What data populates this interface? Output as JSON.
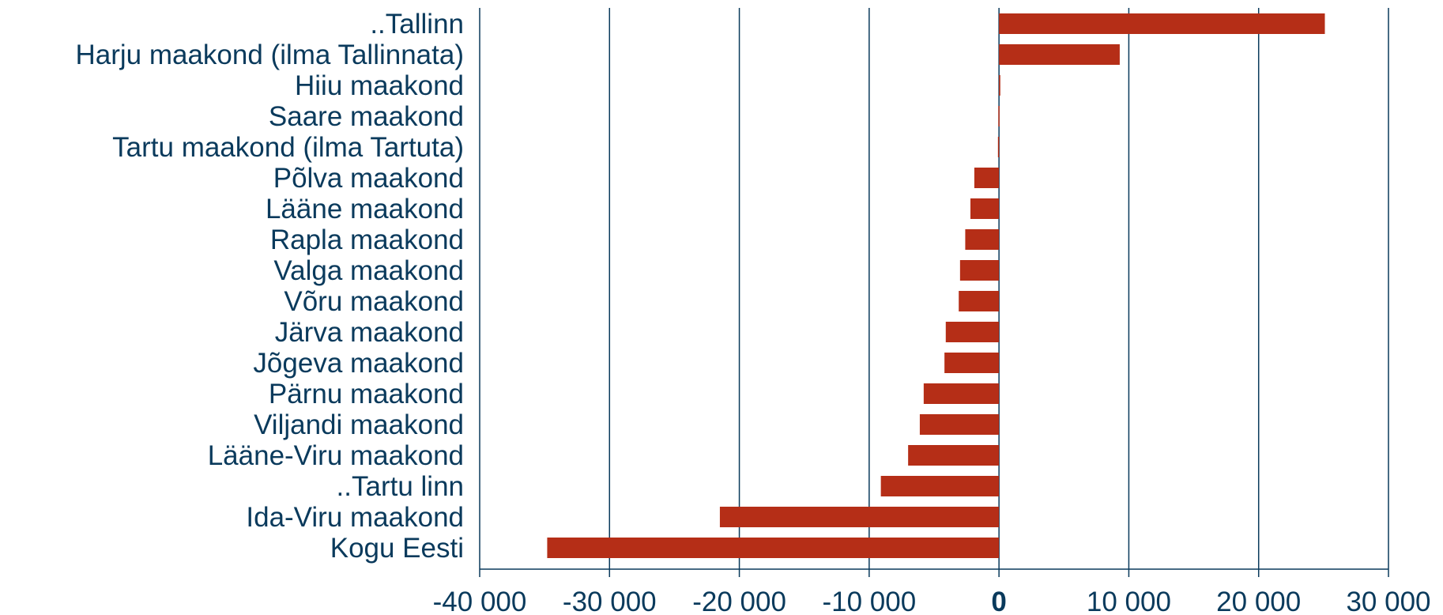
{
  "chart_data": {
    "type": "bar",
    "orientation": "horizontal",
    "categories": [
      "..Tallinn",
      "Harju maakond (ilma Tallinnata)",
      "Hiiu maakond",
      "Saare maakond",
      "Tartu maakond (ilma Tartuta)",
      "Põlva maakond",
      "Lääne maakond",
      "Rapla maakond",
      "Valga maakond",
      "Võru maakond",
      "Järva maakond",
      "Jõgeva maakond",
      "Pärnu maakond",
      "Viljandi maakond",
      "Lääne-Viru maakond",
      "..Tartu linn",
      "Ida-Viru maakond",
      "Kogu Eesti"
    ],
    "values": [
      25100,
      9300,
      100,
      -50,
      -80,
      -1900,
      -2200,
      -2600,
      -3000,
      -3100,
      -4100,
      -4200,
      -5800,
      -6100,
      -7000,
      -9100,
      -21500,
      -34800
    ],
    "xlim": [
      -40000,
      30000
    ],
    "xticks": [
      -40000,
      -30000,
      -20000,
      -10000,
      0,
      10000,
      20000,
      30000
    ],
    "xtick_labels": [
      "-40 000",
      "-30 000",
      "-20 000",
      "-10 000",
      "0",
      "10 000",
      "20 000",
      "30 000"
    ],
    "grid": true,
    "bar_color": "#b52e17",
    "text_color": "#0a3a5c"
  }
}
